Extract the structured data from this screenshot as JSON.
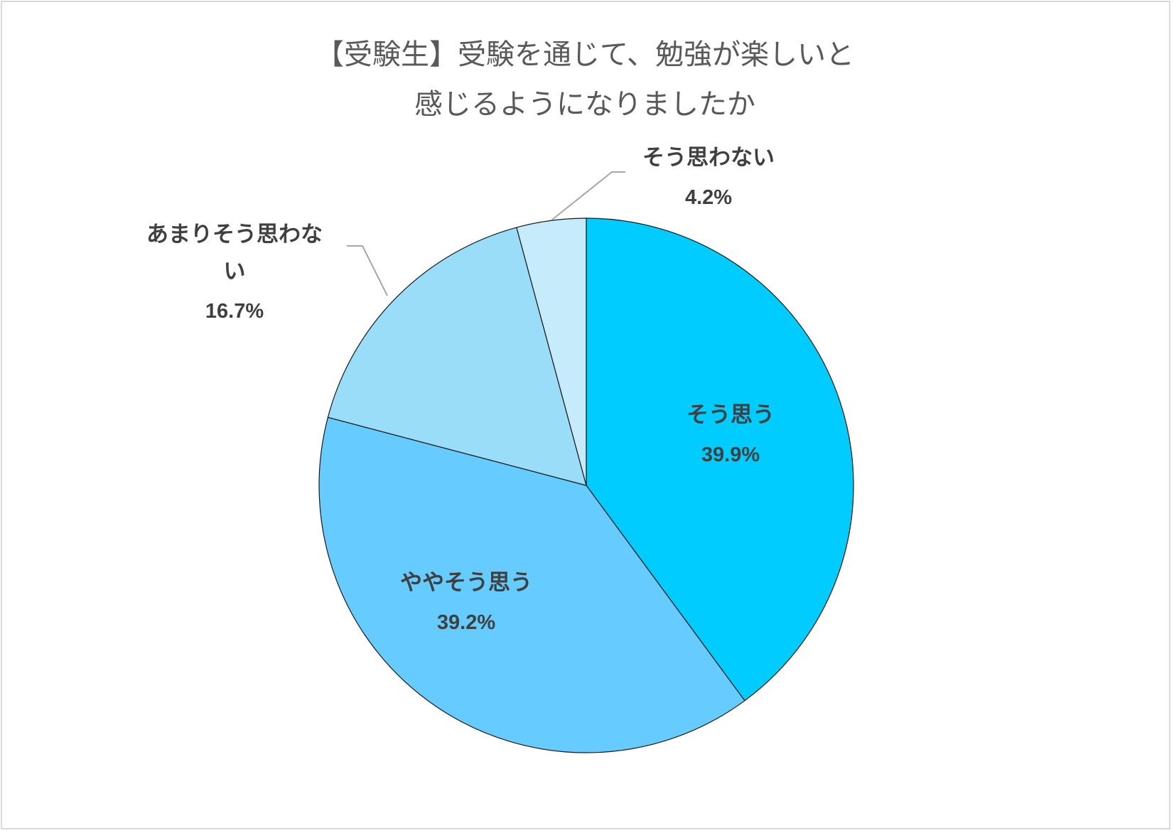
{
  "chart_data": {
    "type": "pie",
    "title_lines": [
      "【受験生】受験を通じて、勉強が楽しいと",
      "感じるようになりましたか"
    ],
    "slices": [
      {
        "label_lines": [
          "そう思う"
        ],
        "value": 39.9,
        "display": "39.9%",
        "color": "#00CCFF"
      },
      {
        "label_lines": [
          "ややそう思う"
        ],
        "value": 39.2,
        "display": "39.2%",
        "color": "#66CCFF"
      },
      {
        "label_lines": [
          "あまりそう思わな",
          "い"
        ],
        "value": 16.7,
        "display": "16.7%",
        "color": "#99DDF8"
      },
      {
        "label_lines": [
          "そう思わない"
        ],
        "value": 4.2,
        "display": "4.2%",
        "color": "#C6EBFB"
      }
    ],
    "start_angle": "12 o'clock",
    "direction": "clockwise",
    "legend": "none"
  }
}
